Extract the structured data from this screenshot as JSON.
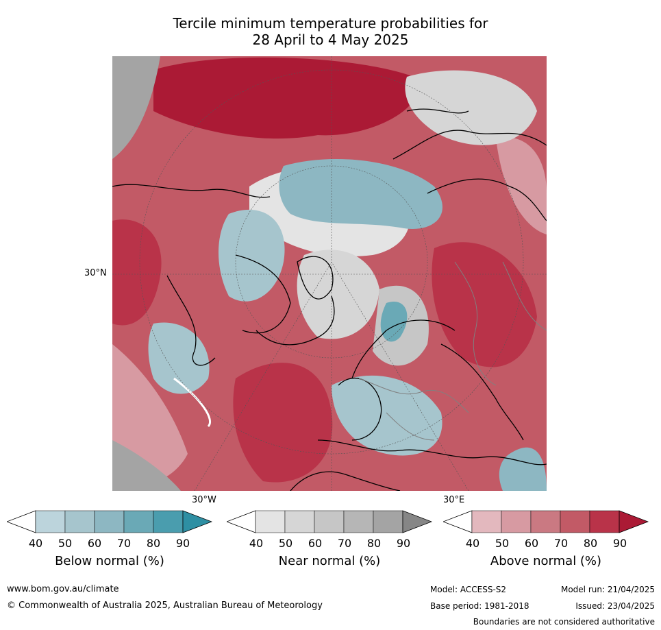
{
  "title_line1": "Tercile minimum temperature probabilities for",
  "title_line2": "28 April to 4 May 2025",
  "map": {
    "lat_label": "30°N",
    "lon_label_west": "30°W",
    "lon_label_east": "30°E"
  },
  "colorbars": [
    {
      "label": "Below normal (%)",
      "ticks": [
        "40",
        "50",
        "60",
        "70",
        "80",
        "90"
      ],
      "colors": [
        "#ffffff",
        "#bcd4dc",
        "#a6c5cd",
        "#8db7c2",
        "#6aa9b6",
        "#4a9dae",
        "#2e8fa3"
      ]
    },
    {
      "label": "Near normal (%)",
      "ticks": [
        "40",
        "50",
        "60",
        "70",
        "80",
        "90"
      ],
      "colors": [
        "#ffffff",
        "#e4e4e4",
        "#d6d6d6",
        "#c6c6c6",
        "#b6b6b6",
        "#a4a4a4",
        "#868686"
      ]
    },
    {
      "label": "Above normal (%)",
      "ticks": [
        "40",
        "50",
        "60",
        "70",
        "80",
        "90"
      ],
      "colors": [
        "#ffffff",
        "#e3b8be",
        "#d79aa2",
        "#ca7982",
        "#c25a66",
        "#b93349",
        "#ab1a35"
      ]
    }
  ],
  "footer": {
    "website": "www.bom.gov.au/climate",
    "copyright": "© Commonwealth of Australia 2025, Australian Bureau of Meteorology",
    "model": "Model: ACCESS-S2",
    "model_run": "Model run: 21/04/2025",
    "base_period": "Base period: 1981-2018",
    "issued": "Issued: 23/04/2025",
    "disclaimer": "Boundaries are not considered authoritative"
  }
}
